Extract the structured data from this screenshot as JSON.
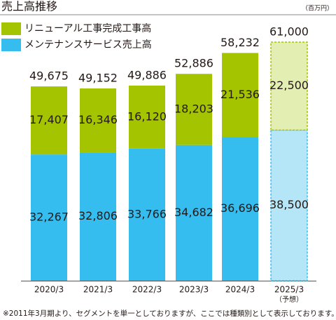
{
  "chart_data": {
    "type": "stacked_bar",
    "title": "売上高推移",
    "unit_label": "（百万円）",
    "categories": [
      "2020/3",
      "2021/3",
      "2022/3",
      "2023/3",
      "2024/3",
      "2025/3"
    ],
    "forecast_note": "（予想）",
    "series": [
      {
        "name": "メンテナンスサービス売上高",
        "color": "#35bdef",
        "forecast_color": "#b5e6f8",
        "values": [
          32267,
          32806,
          33766,
          34682,
          36696,
          38500
        ],
        "value_labels": [
          "32,267",
          "32,806",
          "33,766",
          "34,682",
          "36,696",
          "38,500"
        ]
      },
      {
        "name": "リニューアル工事完成工事高",
        "color": "#a5c400",
        "forecast_color": "#e3efb2",
        "values": [
          17407,
          16346,
          16120,
          18203,
          21536,
          22500
        ],
        "value_labels": [
          "17,407",
          "16,346",
          "16,120",
          "18,203",
          "21,536",
          "22,500"
        ]
      }
    ],
    "totals": {
      "values": [
        49675,
        49152,
        49886,
        52886,
        58232,
        61000
      ],
      "value_labels": [
        "49,675",
        "49,152",
        "49,886",
        "52,886",
        "58,232",
        "61,000"
      ]
    },
    "footnote": "※2011年3月期より、セグメントを単一としておりますが、ここでは種類別として表示しております。"
  }
}
